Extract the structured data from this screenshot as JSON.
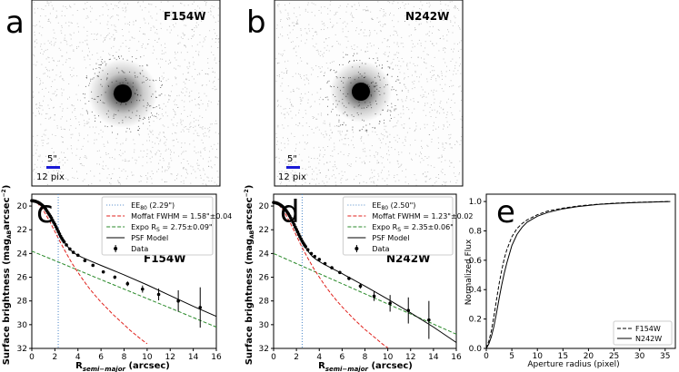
{
  "images": [
    {
      "letter": "a",
      "filter": "F154W",
      "scale_arcsec": "5\"",
      "scale_pix": "12 pix"
    },
    {
      "letter": "b",
      "filter": "N242W",
      "scale_arcsec": "5\"",
      "scale_pix": "12 pix"
    }
  ],
  "colors": {
    "ee": "#4a86c8",
    "moffat": "#e0201b",
    "expo": "#2a8a2a",
    "model": "#000000",
    "scalebar": "#1b1bd6"
  },
  "chart_data": [
    {
      "type": "line",
      "letter": "c",
      "filter": "F154W",
      "xlabel_main": "R",
      "xlabel_sub": "semi−major",
      "xlabel_unit": "(arcsec)",
      "ylabel": "Surface brightness (mag",
      "ylabel_sub": "AB",
      "ylabel_unit": "arcsec",
      "ylabel_exp": "−2",
      "ylabel_close": ")",
      "xlim": [
        0,
        16
      ],
      "ylim": [
        32,
        19
      ],
      "xticks": [
        "0",
        "2",
        "4",
        "6",
        "8",
        "10",
        "12",
        "14",
        "16"
      ],
      "yticks": [
        "20",
        "22",
        "24",
        "26",
        "28",
        "30",
        "32"
      ],
      "ee_x": 2.29,
      "legend": {
        "ee_pre": "EE",
        "ee_sub": "80",
        "ee_val": " (2.29\")",
        "moffat": "Moffat FWHM = 1.58\"±0.04",
        "expo_pre": "Expo R",
        "expo_sub": "S",
        "expo_val": " = 2.75±0.09\"",
        "model": "PSF Model",
        "data": "Data"
      },
      "model": {
        "x": [
          0,
          0.3,
          0.6,
          0.9,
          1.2,
          1.5,
          1.8,
          2.1,
          2.4,
          2.7,
          3.0,
          3.4,
          3.8,
          4.3,
          5,
          6,
          8,
          10,
          12,
          14,
          16
        ],
        "y": [
          19.55,
          19.6,
          19.75,
          19.95,
          20.25,
          20.65,
          21.15,
          21.7,
          22.3,
          22.85,
          23.3,
          23.75,
          24.05,
          24.3,
          24.6,
          25.0,
          25.8,
          26.65,
          27.55,
          28.45,
          29.3
        ]
      },
      "moffat_curve": {
        "x": [
          0,
          0.5,
          1,
          1.5,
          2,
          2.5,
          3,
          3.5,
          4,
          4.5,
          5,
          5.5,
          6,
          6.5,
          7,
          7.5,
          8,
          8.5,
          9,
          9.5,
          10
        ],
        "y": [
          19.55,
          19.75,
          20.35,
          21.2,
          22.15,
          23.1,
          24.0,
          24.85,
          25.6,
          26.3,
          26.95,
          27.55,
          28.1,
          28.6,
          29.1,
          29.55,
          30.0,
          30.45,
          30.85,
          31.25,
          31.6
        ]
      },
      "expo_curve": {
        "x": [
          0,
          2,
          4,
          6,
          8,
          10,
          12,
          14,
          16
        ],
        "y": [
          23.8,
          24.6,
          25.4,
          26.2,
          27.0,
          27.8,
          28.6,
          29.4,
          30.2
        ]
      },
      "points": {
        "x": [
          0,
          0.1,
          0.2,
          0.3,
          0.4,
          0.5,
          0.6,
          0.7,
          0.8,
          0.9,
          1.0,
          1.1,
          1.2,
          1.3,
          1.4,
          1.5,
          1.6,
          1.7,
          1.8,
          1.9,
          2.0,
          2.1,
          2.2,
          2.3,
          2.4,
          2.5,
          2.6,
          2.7,
          2.8,
          3.0,
          3.3,
          3.6,
          4.0,
          4.6,
          5.3,
          6.2,
          7.2,
          8.3,
          9.6,
          11.0,
          12.7,
          14.6
        ],
        "y": [
          19.55,
          19.56,
          19.58,
          19.6,
          19.63,
          19.67,
          19.72,
          19.78,
          19.85,
          19.93,
          20.02,
          20.12,
          20.25,
          20.4,
          20.55,
          20.7,
          20.85,
          21.0,
          21.2,
          21.38,
          21.55,
          21.75,
          21.95,
          22.15,
          22.35,
          22.55,
          22.72,
          22.88,
          23.02,
          23.28,
          23.62,
          23.9,
          24.15,
          24.6,
          25.0,
          25.55,
          26.0,
          26.55,
          27.0,
          27.45,
          28.0,
          28.55
        ],
        "err": [
          0,
          0,
          0,
          0,
          0,
          0,
          0,
          0,
          0,
          0,
          0,
          0,
          0,
          0,
          0,
          0,
          0,
          0,
          0,
          0,
          0,
          0,
          0,
          0,
          0,
          0,
          0,
          0,
          0,
          0,
          0,
          0,
          0,
          0.08,
          0.1,
          0.12,
          0.15,
          0.2,
          0.3,
          0.5,
          0.9,
          1.7
        ]
      }
    },
    {
      "type": "line",
      "letter": "d",
      "filter": "N242W",
      "xlabel_main": "R",
      "xlabel_sub": "semi−major",
      "xlabel_unit": "(arcsec)",
      "ylabel": "Surface brightness (mag",
      "ylabel_sub": "AB",
      "ylabel_unit": "arcsec",
      "ylabel_exp": "−2",
      "ylabel_close": ")",
      "xlim": [
        0,
        16
      ],
      "ylim": [
        32,
        19
      ],
      "xticks": [
        "0",
        "2",
        "4",
        "6",
        "8",
        "10",
        "12",
        "14",
        "16"
      ],
      "yticks": [
        "20",
        "22",
        "24",
        "26",
        "28",
        "30",
        "32"
      ],
      "ee_x": 2.5,
      "legend": {
        "ee_pre": "EE",
        "ee_sub": "80",
        "ee_val": " (2.50\")",
        "moffat": "Moffat FWHM = 1.23\"±0.02",
        "expo_pre": "Expo R",
        "expo_sub": "S",
        "expo_val": " = 2.35±0.06\"",
        "model": "PSF Model",
        "data": "Data"
      },
      "model": {
        "x": [
          0,
          0.3,
          0.6,
          0.9,
          1.2,
          1.5,
          1.8,
          2.1,
          2.4,
          2.7,
          3.0,
          3.4,
          3.8,
          4.3,
          5,
          6,
          8,
          10,
          12,
          14,
          16
        ],
        "y": [
          19.7,
          19.75,
          19.9,
          20.15,
          20.5,
          20.95,
          21.5,
          22.1,
          22.75,
          23.35,
          23.8,
          24.25,
          24.55,
          24.85,
          25.2,
          25.7,
          26.75,
          27.85,
          29.0,
          30.2,
          31.5
        ]
      },
      "moffat_curve": {
        "x": [
          0,
          0.5,
          1,
          1.5,
          2,
          2.5,
          3,
          3.5,
          4,
          4.5,
          5,
          5.5,
          6,
          6.5,
          7,
          7.5,
          8,
          8.5,
          9,
          9.5,
          10
        ],
        "y": [
          19.7,
          19.95,
          20.6,
          21.5,
          22.5,
          23.5,
          24.4,
          25.25,
          26.0,
          26.7,
          27.35,
          27.95,
          28.5,
          29.0,
          29.5,
          29.95,
          30.4,
          30.8,
          31.2,
          31.6,
          31.95
        ]
      },
      "expo_curve": {
        "x": [
          0,
          2,
          4,
          6,
          8,
          10,
          12,
          14,
          16
        ],
        "y": [
          24.0,
          24.85,
          25.7,
          26.55,
          27.4,
          28.25,
          29.1,
          29.95,
          30.8
        ]
      },
      "points": {
        "x": [
          0,
          0.1,
          0.2,
          0.3,
          0.4,
          0.5,
          0.6,
          0.7,
          0.8,
          0.9,
          1.0,
          1.1,
          1.2,
          1.3,
          1.4,
          1.5,
          1.6,
          1.7,
          1.8,
          1.9,
          2.0,
          2.1,
          2.2,
          2.3,
          2.4,
          2.5,
          2.6,
          2.7,
          2.8,
          3.0,
          3.3,
          3.6,
          4.0,
          4.5,
          5.1,
          5.8,
          6.6,
          7.6,
          8.8,
          10.2,
          11.8,
          13.6
        ],
        "y": [
          19.7,
          19.71,
          19.73,
          19.76,
          19.8,
          19.85,
          19.91,
          19.98,
          20.06,
          20.15,
          20.26,
          20.38,
          20.52,
          20.67,
          20.83,
          21.0,
          21.18,
          21.37,
          21.57,
          21.78,
          21.98,
          22.18,
          22.38,
          22.58,
          22.78,
          22.96,
          23.12,
          23.28,
          23.42,
          23.68,
          24.0,
          24.25,
          24.5,
          24.85,
          25.2,
          25.6,
          26.1,
          26.75,
          27.6,
          28.2,
          28.8,
          29.6
        ],
        "err": [
          0,
          0,
          0,
          0,
          0,
          0,
          0,
          0,
          0,
          0,
          0,
          0,
          0,
          0,
          0,
          0,
          0,
          0,
          0,
          0,
          0,
          0,
          0,
          0,
          0,
          0,
          0,
          0,
          0,
          0,
          0,
          0,
          0,
          0,
          0.1,
          0.12,
          0.15,
          0.2,
          0.4,
          0.7,
          1.1,
          1.6
        ]
      }
    },
    {
      "type": "line",
      "letter": "e",
      "xlabel": "Aperture radius (pixel)",
      "ylabel": "Normalized Flux",
      "xlim": [
        0,
        37
      ],
      "ylim": [
        0,
        1.05
      ],
      "xticks": [
        "0",
        "5",
        "10",
        "15",
        "20",
        "25",
        "30",
        "35"
      ],
      "yticks": [
        "0.0",
        "0.2",
        "0.4",
        "0.6",
        "0.8",
        "1.0"
      ],
      "series": [
        {
          "name": "F154W",
          "style": "dashed",
          "x": [
            0,
            0.5,
            1,
            1.5,
            2,
            2.5,
            3,
            3.5,
            4,
            5,
            6,
            7,
            8,
            10,
            12,
            15,
            18,
            22,
            26,
            30,
            36
          ],
          "y": [
            0,
            0.05,
            0.12,
            0.22,
            0.33,
            0.44,
            0.53,
            0.61,
            0.67,
            0.76,
            0.815,
            0.85,
            0.875,
            0.91,
            0.935,
            0.955,
            0.97,
            0.982,
            0.99,
            0.995,
            1.0
          ]
        },
        {
          "name": "N242W",
          "style": "solid",
          "x": [
            0,
            0.5,
            1,
            1.5,
            2,
            2.5,
            3,
            3.5,
            4,
            5,
            6,
            7,
            8,
            10,
            12,
            15,
            18,
            22,
            26,
            30,
            36
          ],
          "y": [
            0,
            0.03,
            0.08,
            0.15,
            0.24,
            0.34,
            0.43,
            0.51,
            0.58,
            0.7,
            0.775,
            0.825,
            0.86,
            0.9,
            0.925,
            0.95,
            0.966,
            0.98,
            0.988,
            0.994,
            1.0
          ]
        }
      ]
    }
  ]
}
